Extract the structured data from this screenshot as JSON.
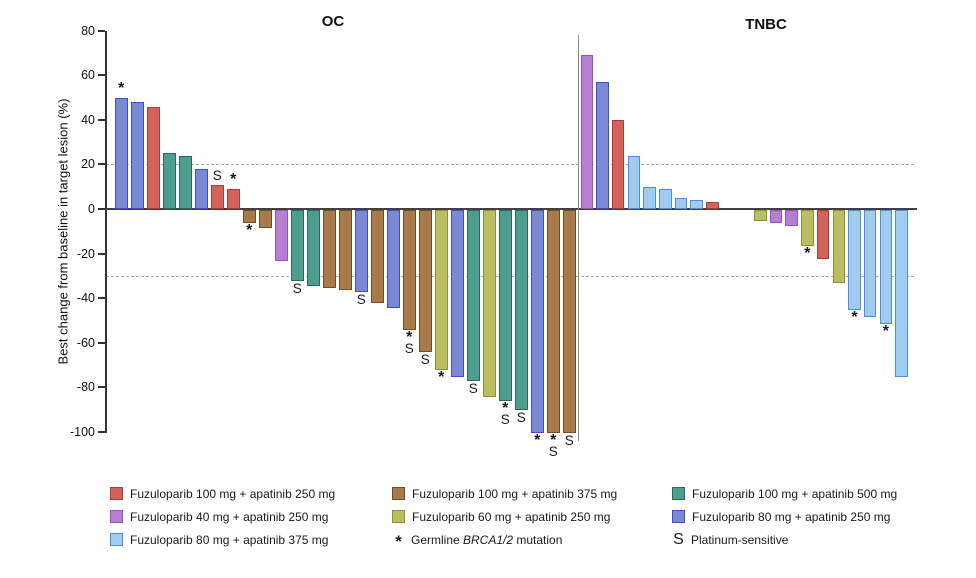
{
  "chart_data": {
    "type": "bar",
    "subtype": "waterfall",
    "ylabel": "Best change from baseline in target lesion (%)",
    "ylim": [
      -100,
      80
    ],
    "ytick_step": 20,
    "reference_lines": [
      20,
      -30
    ],
    "grid": "dashed reference lines only",
    "groups": {
      "red": {
        "label": "Fuzuloparib 100 mg + apatinib 250 mg",
        "fill": "#d3625d",
        "border": "#ad3b35"
      },
      "purple": {
        "label": "Fuzuloparib 40 mg + apatinib 250 mg",
        "fill": "#b87ed2",
        "border": "#9851bd"
      },
      "ltblue": {
        "label": "Fuzuloparib 80 mg + apatinib 375 mg",
        "fill": "#a2cbf0",
        "border": "#4991dc"
      },
      "brown": {
        "label": "Fuzuloparib 100 mg + apatinib 375 mg",
        "fill": "#a87b4c",
        "border": "#6f4f29"
      },
      "olive": {
        "label": "Fuzuloparib 60 mg + apatinib 250 mg",
        "fill": "#babd62",
        "border": "#8b9230"
      },
      "teal": {
        "label": "Fuzuloparib 100 mg + apatinib 500 mg",
        "fill": "#4f9c90",
        "border": "#266b5f"
      },
      "peri": {
        "label": "Fuzuloparib 80 mg + apatinib 250 mg",
        "fill": "#7b89d4",
        "border": "#3f4fc0"
      }
    },
    "symbols": {
      "star": {
        "glyph": "*",
        "label": "Germline BRCA1/2 mutation",
        "italic_part": "BRCA1/2"
      },
      "s": {
        "glyph": "S",
        "label": "Platinum-sensitive"
      }
    },
    "panels": [
      {
        "label": "OC",
        "bars": [
          {
            "value": 50,
            "group": "peri",
            "markers": [
              "*"
            ]
          },
          {
            "value": 48,
            "group": "peri",
            "markers": []
          },
          {
            "value": 46,
            "group": "red",
            "markers": []
          },
          {
            "value": 25,
            "group": "teal",
            "markers": []
          },
          {
            "value": 24,
            "group": "teal",
            "markers": []
          },
          {
            "value": 18,
            "group": "peri",
            "markers": []
          },
          {
            "value": 11,
            "group": "red",
            "markers": [
              "S"
            ]
          },
          {
            "value": 9,
            "group": "red",
            "markers": [
              "*"
            ]
          },
          {
            "value": -6,
            "group": "brown",
            "markers": [
              "*"
            ]
          },
          {
            "value": -8,
            "group": "brown",
            "markers": []
          },
          {
            "value": -23,
            "group": "purple",
            "markers": []
          },
          {
            "value": -32,
            "group": "teal",
            "markers": [
              "S"
            ]
          },
          {
            "value": -34,
            "group": "teal",
            "markers": []
          },
          {
            "value": -35,
            "group": "brown",
            "markers": []
          },
          {
            "value": -36,
            "group": "brown",
            "markers": []
          },
          {
            "value": -37,
            "group": "peri",
            "markers": [
              "S"
            ]
          },
          {
            "value": -42,
            "group": "brown",
            "markers": []
          },
          {
            "value": -44,
            "group": "peri",
            "markers": []
          },
          {
            "value": -54,
            "group": "brown",
            "markers": [
              "*",
              "S"
            ]
          },
          {
            "value": -64,
            "group": "brown",
            "markers": [
              "S"
            ]
          },
          {
            "value": -72,
            "group": "olive",
            "markers": [
              "*"
            ]
          },
          {
            "value": -75,
            "group": "peri",
            "markers": []
          },
          {
            "value": -77,
            "group": "teal",
            "markers": [
              "S"
            ]
          },
          {
            "value": -84,
            "group": "olive",
            "markers": []
          },
          {
            "value": -86,
            "group": "teal",
            "markers": [
              "*",
              "S"
            ]
          },
          {
            "value": -90,
            "group": "teal",
            "markers": [
              "S"
            ]
          },
          {
            "value": -100,
            "group": "peri",
            "markers": [
              "*"
            ]
          },
          {
            "value": -100,
            "group": "brown",
            "markers": [
              "*",
              "S"
            ]
          },
          {
            "value": -100,
            "group": "brown",
            "markers": [
              "S"
            ]
          }
        ]
      },
      {
        "label": "TNBC",
        "gap_after_index": 8,
        "bars": [
          {
            "value": 69,
            "group": "purple",
            "markers": []
          },
          {
            "value": 57,
            "group": "peri",
            "markers": []
          },
          {
            "value": 40,
            "group": "red",
            "markers": []
          },
          {
            "value": 24,
            "group": "ltblue",
            "markers": []
          },
          {
            "value": 10,
            "group": "ltblue",
            "markers": []
          },
          {
            "value": 9,
            "group": "ltblue",
            "markers": []
          },
          {
            "value": 5,
            "group": "ltblue",
            "markers": []
          },
          {
            "value": 4,
            "group": "ltblue",
            "markers": []
          },
          {
            "value": 3,
            "group": "red",
            "markers": []
          },
          {
            "value": -5,
            "group": "olive",
            "markers": []
          },
          {
            "value": -6,
            "group": "purple",
            "markers": []
          },
          {
            "value": -7,
            "group": "purple",
            "markers": []
          },
          {
            "value": -16,
            "group": "olive",
            "markers": [
              "*"
            ]
          },
          {
            "value": -22,
            "group": "red",
            "markers": []
          },
          {
            "value": -33,
            "group": "olive",
            "markers": []
          },
          {
            "value": -45,
            "group": "ltblue",
            "markers": [
              "*"
            ]
          },
          {
            "value": -48,
            "group": "ltblue",
            "markers": []
          },
          {
            "value": -51,
            "group": "ltblue",
            "markers": [
              "*"
            ]
          },
          {
            "value": -75,
            "group": "ltblue",
            "markers": []
          }
        ]
      }
    ],
    "legend_columns": [
      [
        "red",
        "purple",
        "ltblue"
      ],
      [
        "brown",
        "olive",
        "sym:star"
      ],
      [
        "teal",
        "peri",
        "sym:s"
      ]
    ]
  }
}
